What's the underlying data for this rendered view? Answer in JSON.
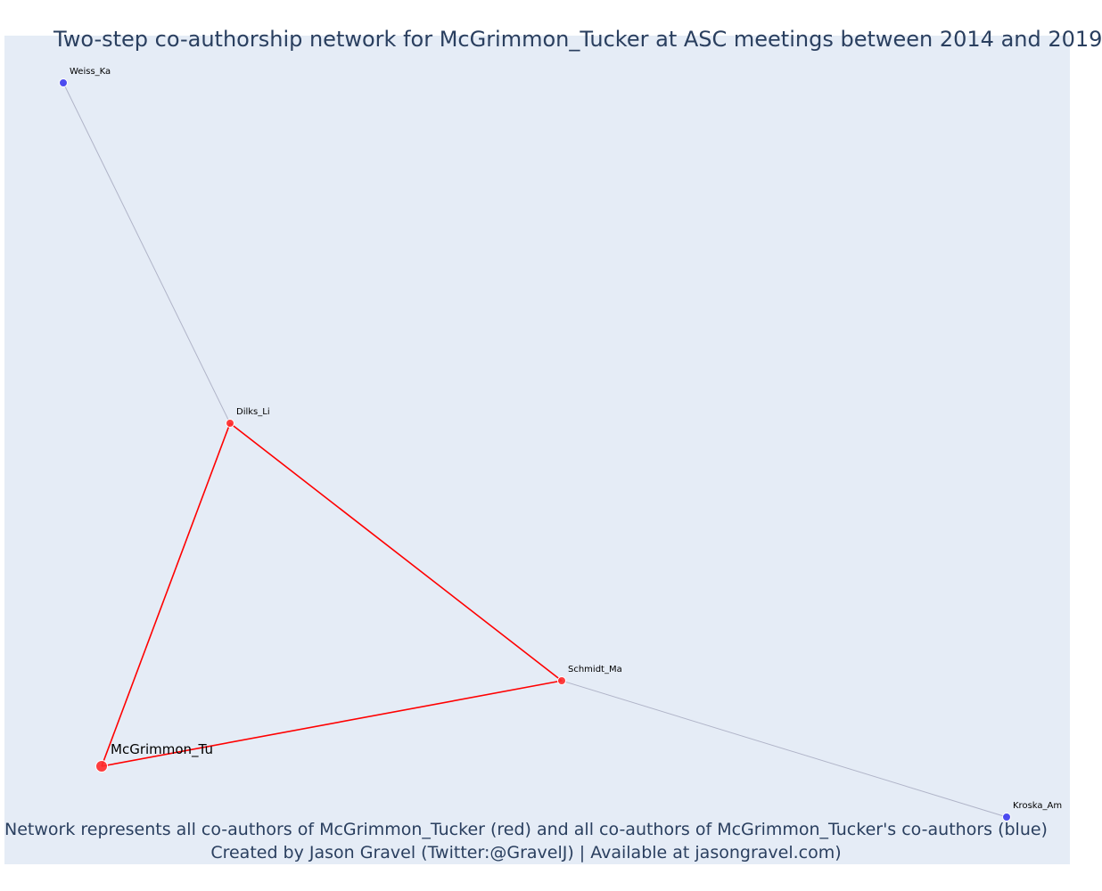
{
  "title": "Two-step co-authorship network for McGrimmon_Tucker at ASC meetings between 2014 and 2019",
  "caption": {
    "line1": "Network represents all co-authors of McGrimmon_Tucker (red) and all co-authors of McGrimmon_Tucker's co-authors (blue)",
    "line2": "Created by Jason Gravel (Twitter:@GravelJ) | Available at jasongravel.com)"
  },
  "colors": {
    "plot_background": "#e5ecf6",
    "direct_coauthor": "#ff2a2a",
    "secondary_coauthor": "#3b3bf0",
    "direct_edge": "#ff0000",
    "secondary_edge": "#b0b4c8",
    "text": "#2a3f5f"
  },
  "chart_data": {
    "type": "network",
    "nodes": [
      {
        "id": "McGrimmon_Tu",
        "label": "McGrimmon_Tu",
        "group": "focal"
      },
      {
        "id": "Dilks_Li",
        "label": "Dilks_Li",
        "group": "direct"
      },
      {
        "id": "Schmidt_Ma",
        "label": "Schmidt_Ma",
        "group": "direct"
      },
      {
        "id": "Weiss_Ka",
        "label": "Weiss_Ka",
        "group": "secondary"
      },
      {
        "id": "Kroska_Am",
        "label": "Kroska_Am",
        "group": "secondary"
      }
    ],
    "edges": [
      {
        "source": "McGrimmon_Tu",
        "target": "Dilks_Li",
        "type": "direct"
      },
      {
        "source": "McGrimmon_Tu",
        "target": "Schmidt_Ma",
        "type": "direct"
      },
      {
        "source": "Dilks_Li",
        "target": "Schmidt_Ma",
        "type": "direct"
      },
      {
        "source": "Dilks_Li",
        "target": "Weiss_Ka",
        "type": "secondary"
      },
      {
        "source": "Schmidt_Ma",
        "target": "Kroska_Am",
        "type": "secondary"
      }
    ]
  }
}
